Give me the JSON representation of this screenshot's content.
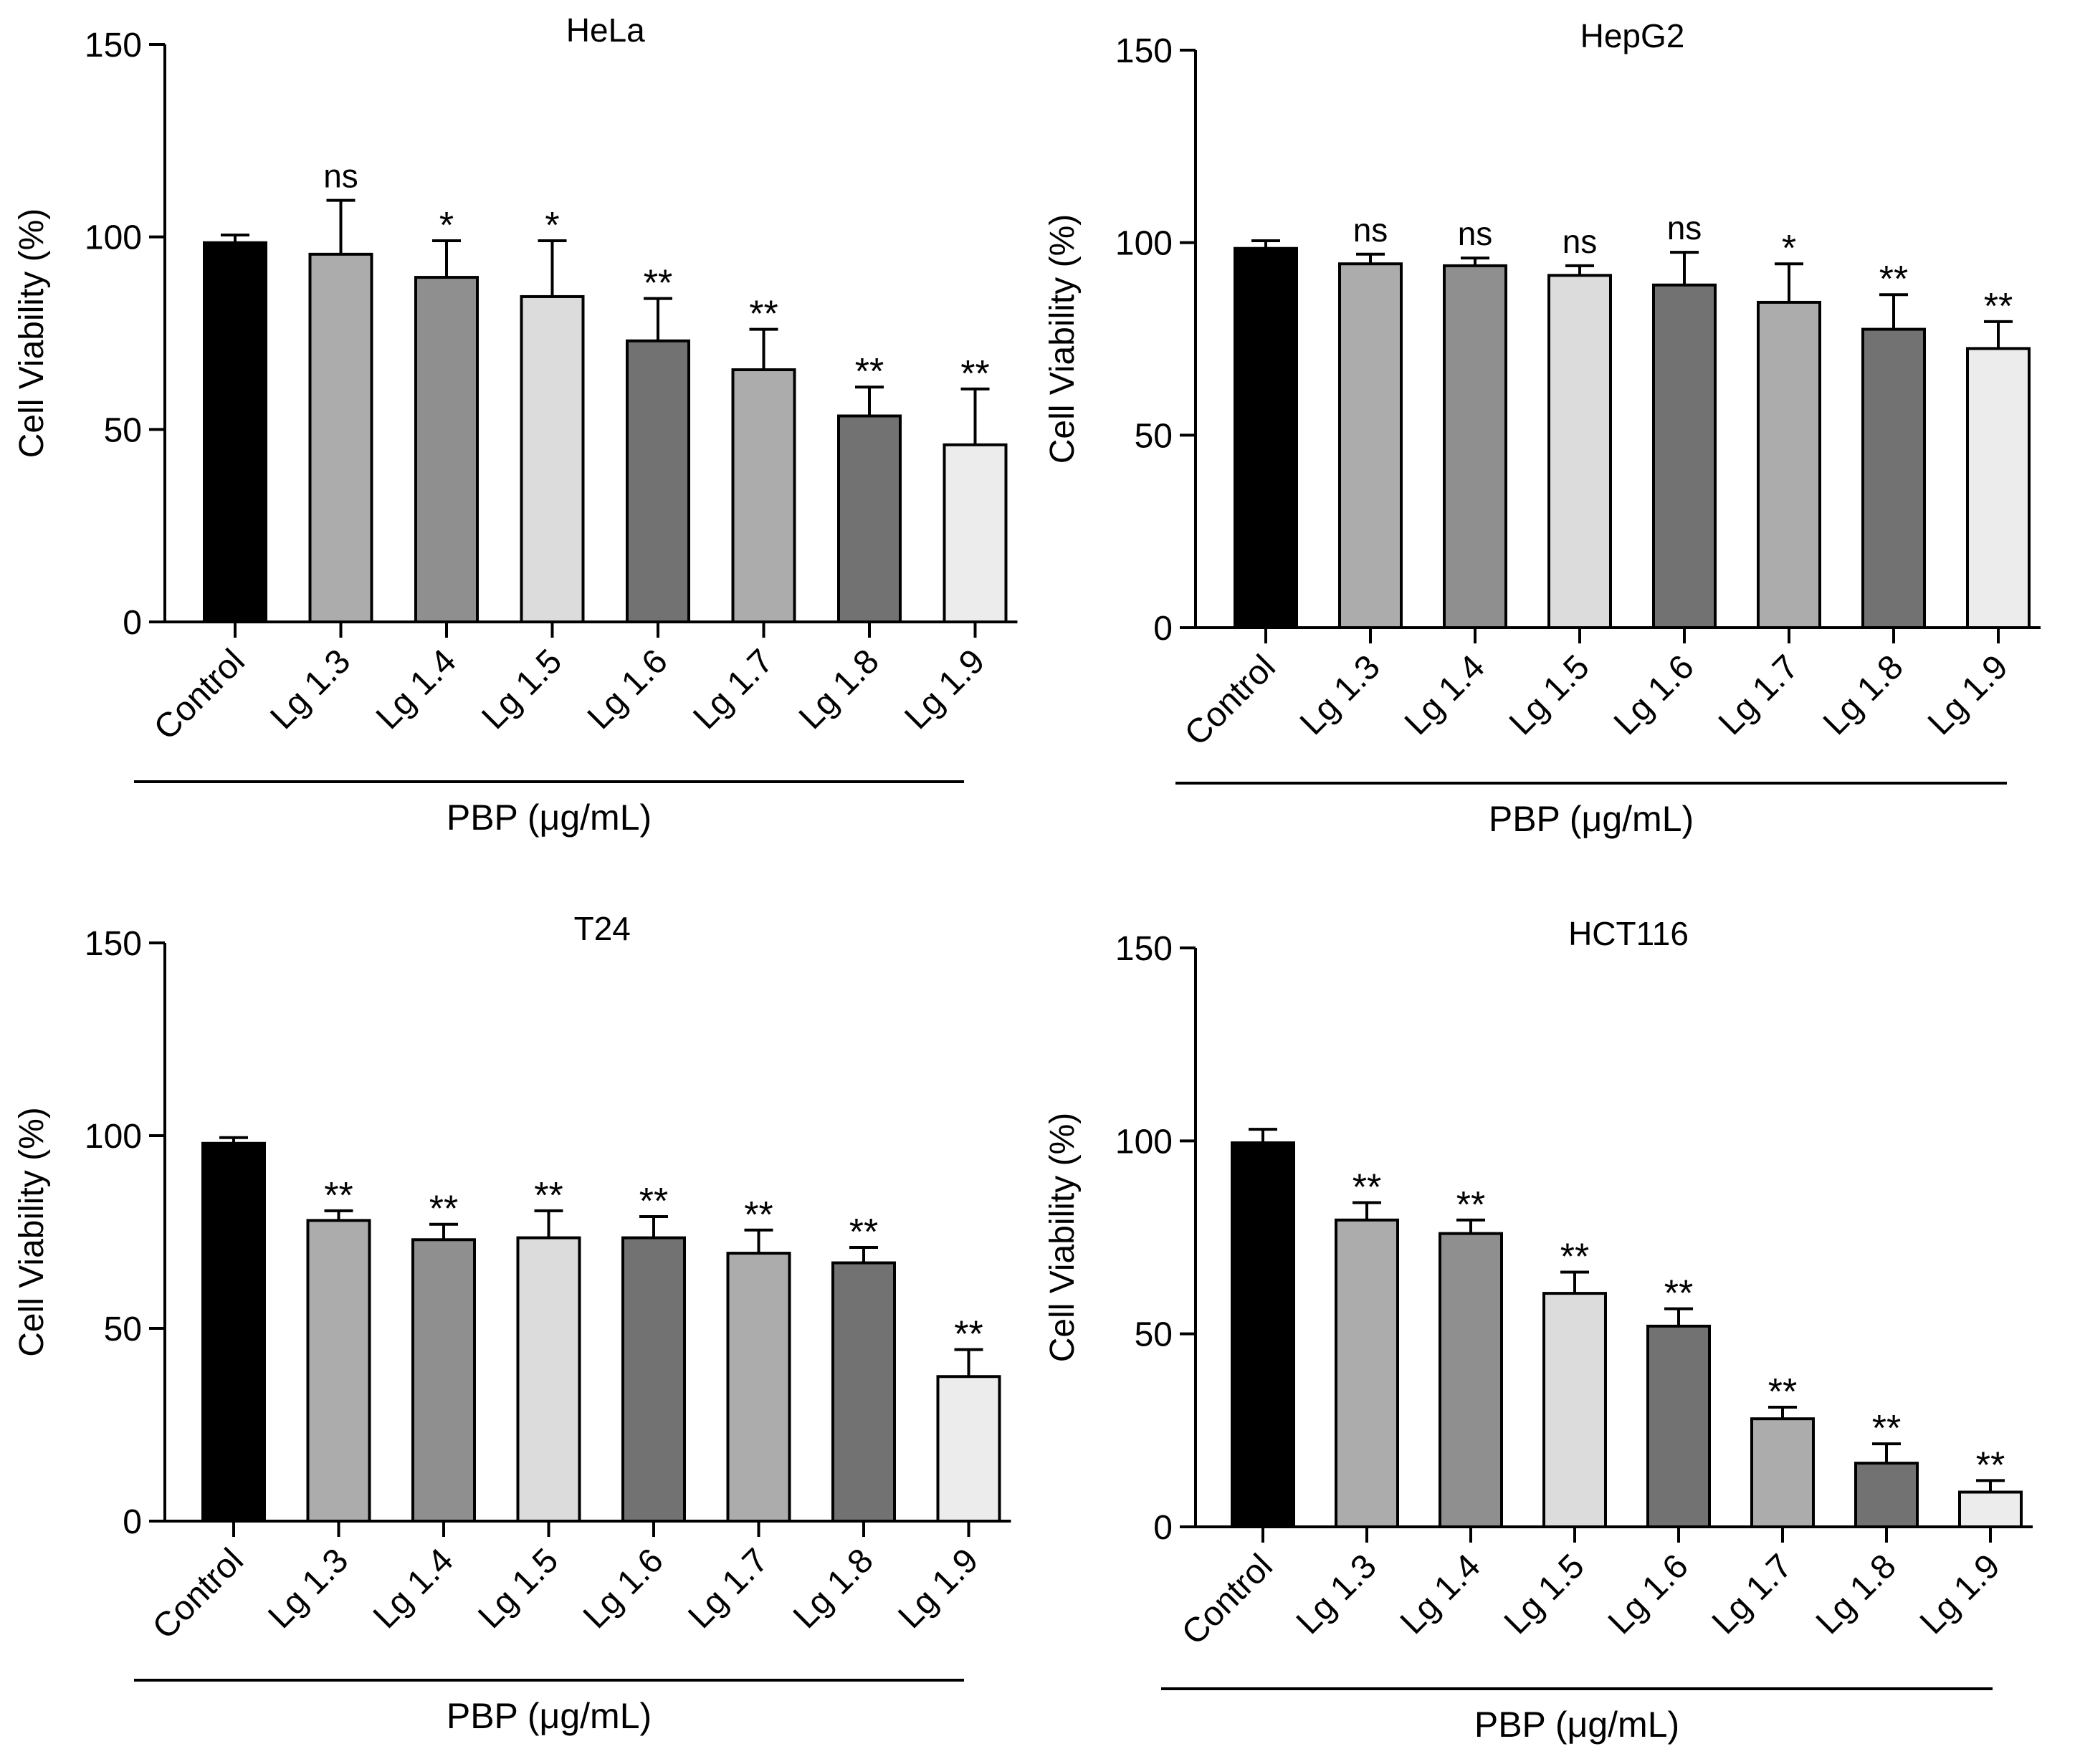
{
  "figure": {
    "ylabel": "Cell Viability (%)",
    "group_label": "PBP (μg/mL)"
  },
  "colors": {
    "bar_fills": [
      "#000000",
      "#acacac",
      "#8f8f8f",
      "#dcdcdc",
      "#727272",
      "#acacac",
      "#727272",
      "#ececec"
    ],
    "stroke": "#000000"
  },
  "chart_data": [
    {
      "type": "bar",
      "title": "HeLa",
      "xlabel": "PBP (μg/mL)",
      "ylabel": "Cell Viability (%)",
      "ylim": [
        0,
        150
      ],
      "yticks": [
        "0",
        "50",
        "100",
        "150"
      ],
      "categories": [
        "Control",
        "Lg 1.3",
        "Lg 1.4",
        "Lg 1.5",
        "Lg 1.6",
        "Lg 1.7",
        "Lg 1.8",
        "Lg 1.9"
      ],
      "values": [
        98.5,
        95.5,
        89.5,
        84.5,
        73,
        65.5,
        53.5,
        46
      ],
      "errors": [
        2,
        14,
        9.5,
        14.5,
        11,
        10.5,
        7.5,
        14.5
      ],
      "significance": [
        "",
        "ns",
        "*",
        "*",
        "**",
        "**",
        "**",
        "**"
      ]
    },
    {
      "type": "bar",
      "title": "HepG2",
      "xlabel": "PBP (μg/mL)",
      "ylabel": "Cell Viability (%)",
      "ylim": [
        0,
        150
      ],
      "yticks": [
        "0",
        "50",
        "100",
        "150"
      ],
      "categories": [
        "Control",
        "Lg 1.3",
        "Lg 1.4",
        "Lg 1.5",
        "Lg 1.6",
        "Lg 1.7",
        "Lg 1.8",
        "Lg 1.9"
      ],
      "values": [
        98.5,
        94.5,
        94,
        91.5,
        89,
        84.5,
        77.5,
        72.5
      ],
      "errors": [
        2,
        2.5,
        2,
        2.5,
        8.5,
        10,
        9,
        7
      ],
      "significance": [
        "",
        "ns",
        "ns",
        "ns",
        "ns",
        "*",
        "**",
        "**"
      ]
    },
    {
      "type": "bar",
      "title": "T24",
      "xlabel": "PBP (μg/mL)",
      "ylabel": "Cell Viability (%)",
      "ylim": [
        0,
        150
      ],
      "yticks": [
        "0",
        "50",
        "100",
        "150"
      ],
      "categories": [
        "Control",
        "Lg 1.3",
        "Lg 1.4",
        "Lg 1.5",
        "Lg 1.6",
        "Lg 1.7",
        "Lg 1.8",
        "Lg 1.9"
      ],
      "values": [
        98,
        78,
        73,
        73.5,
        73.5,
        69.5,
        67,
        37.5
      ],
      "errors": [
        1.5,
        2.5,
        4,
        7,
        5.5,
        6,
        4,
        7
      ],
      "significance": [
        "",
        "**",
        "**",
        "**",
        "**",
        "**",
        "**",
        "**"
      ]
    },
    {
      "type": "bar",
      "title": "HCT116",
      "xlabel": "PBP (μg/mL)",
      "ylabel": "Cell Viability (%)",
      "ylim": [
        0,
        150
      ],
      "yticks": [
        "0",
        "50",
        "100",
        "150"
      ],
      "categories": [
        "Control",
        "Lg 1.3",
        "Lg 1.4",
        "Lg 1.5",
        "Lg 1.6",
        "Lg 1.7",
        "Lg 1.8",
        "Lg 1.9"
      ],
      "values": [
        99.5,
        79.5,
        76,
        60.5,
        52,
        28,
        16.5,
        9
      ],
      "errors": [
        3.5,
        4.5,
        3.5,
        5.5,
        4.5,
        3,
        5,
        3
      ],
      "significance": [
        "",
        "**",
        "**",
        "**",
        "**",
        "**",
        "**",
        "**"
      ]
    }
  ]
}
